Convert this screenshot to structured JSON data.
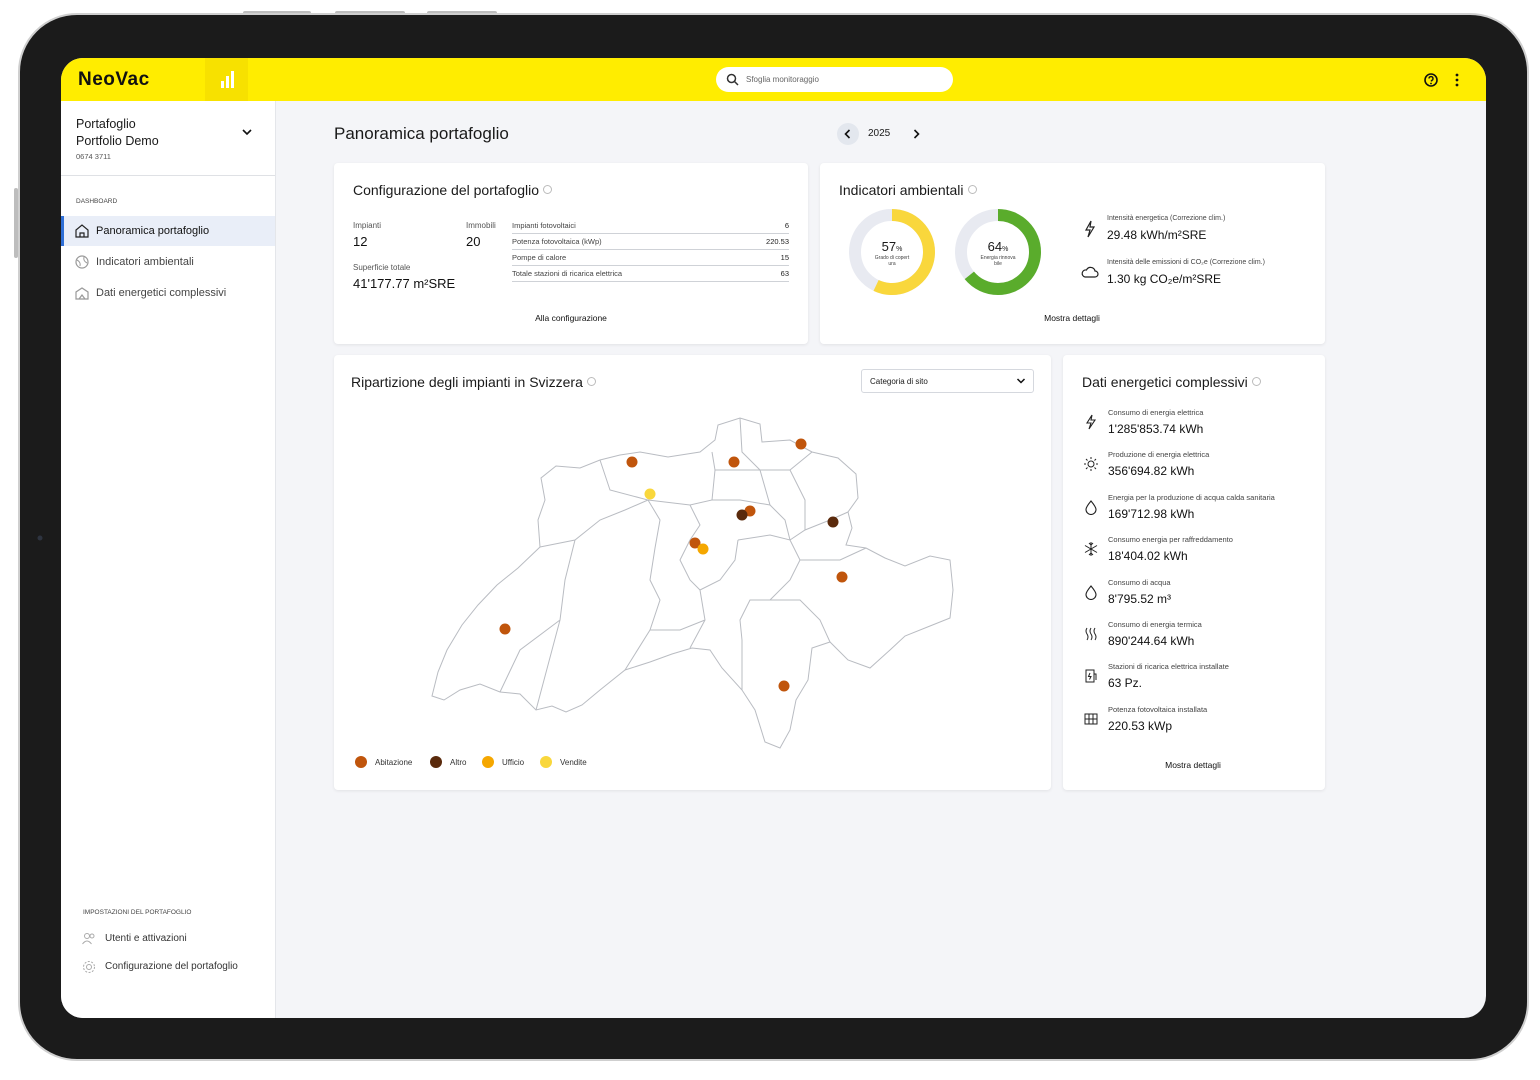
{
  "header": {
    "logo": "NeoVac",
    "search_placeholder": "Sfoglia monitoraggio"
  },
  "sidebar": {
    "portfolio_label": "Portafoglio",
    "portfolio_name": "Portfolio Demo",
    "portfolio_id": "0674 3711",
    "section": "DASHBOARD",
    "nav": [
      "Panoramica portafoglio",
      "Indicatori ambientali",
      "Dati energetici complessivi"
    ],
    "settings_section": "IMPOSTAZIONI DEL PORTAFOGLIO",
    "settings": [
      "Utenti e attivazioni",
      "Configurazione del portafoglio"
    ]
  },
  "page": {
    "title": "Panoramica portafoglio",
    "year": "2025"
  },
  "configuration": {
    "title": "Configurazione del portafoglio",
    "plants_label": "Impianti",
    "plants": 12,
    "buildings_label": "Immobili",
    "buildings": 20,
    "area_label": "Superficie totale",
    "area": "41'177.77 m²SRE",
    "rows": [
      {
        "label": "Impianti fotovoltaici",
        "value": 6
      },
      {
        "label": "Potenza fotovoltaica (kWp)",
        "value": 220.53
      },
      {
        "label": "Pompe di calore",
        "value": 15
      },
      {
        "label": "Totale stazioni di ricarica elettrica",
        "value": 63
      }
    ],
    "link": "Alla configurazione"
  },
  "environment": {
    "title": "Indicatori ambientali",
    "donuts": [
      {
        "value": 57,
        "unit": "%",
        "label": "Grado di copertura",
        "color": "#f9d73c"
      },
      {
        "value": 64,
        "unit": "%",
        "label": "Energia rinnovabile",
        "color": "#5aac2c"
      }
    ],
    "metrics": [
      {
        "label": "Intensità energetica (Correzione clim.)",
        "value": "29.48 kWh/m²SRE"
      },
      {
        "label": "Intensità delle emissioni di CO₂e (Correzione clim.)",
        "value": "1.30 kg CO₂e/m²SRE"
      }
    ],
    "link": "Mostra dettagli"
  },
  "map": {
    "title": "Ripartizione degli impianti in Svizzera",
    "filter": "Categoria di sito",
    "legend": [
      {
        "name": "Abitazione",
        "color": "#c0550c"
      },
      {
        "name": "Altro",
        "color": "#5a2a0c"
      },
      {
        "name": "Ufficio",
        "color": "#f5a700"
      },
      {
        "name": "Vendite",
        "color": "#f9d73c"
      }
    ]
  },
  "energy": {
    "title": "Dati energetici complessivi",
    "items": [
      {
        "label": "Consumo di energia elettrica",
        "value": "1'285'853.74 kWh"
      },
      {
        "label": "Produzione di energia elettrica",
        "value": "356'694.82 kWh"
      },
      {
        "label": "Energia per la produzione di acqua calda sanitaria",
        "value": "169'712.98 kWh"
      },
      {
        "label": "Consumo energia per raffreddamento",
        "value": "18'404.02 kWh"
      },
      {
        "label": "Consumo di acqua",
        "value": "8'795.52 m³"
      },
      {
        "label": "Consumo di energia termica",
        "value": "890'244.64 kWh"
      },
      {
        "label": "Stazioni di ricarica elettrica installate",
        "value": "63 Pz."
      },
      {
        "label": "Potenza fotovoltaica installata",
        "value": "220.53 kWp"
      }
    ],
    "link": "Mostra dettagli"
  }
}
